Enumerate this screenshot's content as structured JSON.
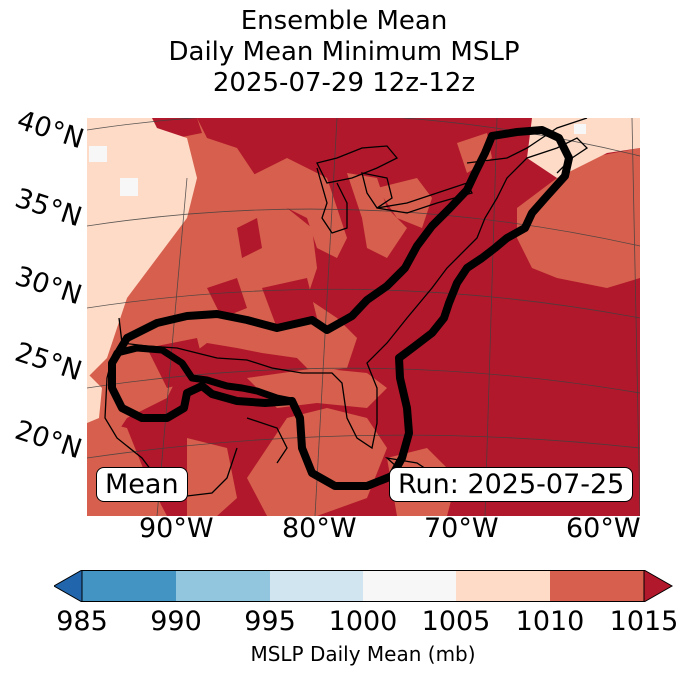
{
  "title": {
    "line1": "Ensemble Mean",
    "line2": "Daily Mean Minimum MSLP",
    "line3": "2025-07-29 12z-12z"
  },
  "map": {
    "lat_labels": [
      "40°N",
      "35°N",
      "30°N",
      "25°N",
      "20°N"
    ],
    "lon_labels": [
      "90°W",
      "80°W",
      "70°W",
      "60°W"
    ],
    "mean_label": "Mean",
    "run_label": "Run: 2025-07-25",
    "colors": {
      "c1015": "#b2182b",
      "c1010": "#d6604d",
      "c1005": "#fddbc7",
      "c1000": "#f7f7f7",
      "coast": "#000000",
      "outline": "#000000"
    }
  },
  "colorbar": {
    "ticks": [
      "985",
      "990",
      "995",
      "1000",
      "1005",
      "1010",
      "1015"
    ],
    "label": "MSLP Daily Mean (mb)",
    "colors": [
      "#2166ac",
      "#4393c3",
      "#92c5de",
      "#d1e5f0",
      "#f7f7f7",
      "#fddbc7",
      "#d6604d",
      "#b2182b"
    ]
  }
}
